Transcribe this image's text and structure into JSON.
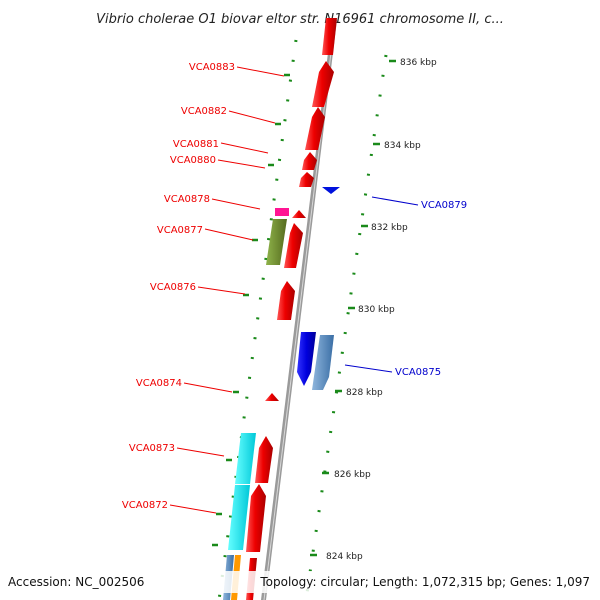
{
  "title": "Vibrio cholerae O1 biovar eltor str. N16961 chromosome II, c...",
  "accession": "Accession: NC_002506",
  "topology": "Topology: circular; Length: 1,072,315 bp; Genes: 1,097",
  "kbp_ticks": [
    {
      "label": "836 kbp"
    },
    {
      "label": "834 kbp"
    },
    {
      "label": "832 kbp"
    },
    {
      "label": "830 kbp"
    },
    {
      "label": "828 kbp"
    },
    {
      "label": "826 kbp"
    },
    {
      "label": "824 kbp"
    }
  ],
  "genes_forward": [
    {
      "label": "VCA0883"
    },
    {
      "label": "VCA0882"
    },
    {
      "label": "VCA0881"
    },
    {
      "label": "VCA0880"
    },
    {
      "label": "VCA0878"
    },
    {
      "label": "VCA0877"
    },
    {
      "label": "VCA0876"
    },
    {
      "label": "VCA0874"
    },
    {
      "label": "VCA0873"
    },
    {
      "label": "VCA0872"
    }
  ],
  "genes_reverse": [
    {
      "label": "VCA0879"
    },
    {
      "label": "VCA0875"
    }
  ],
  "colors": {
    "forward": "#ff0000",
    "reverse": "#0000cc",
    "backbone": "#999999",
    "ticks": "#008000",
    "cyan": "#00e5ee",
    "olive": "#6b8e23",
    "magenta": "#ff1493",
    "steelblue": "#4682b4"
  }
}
